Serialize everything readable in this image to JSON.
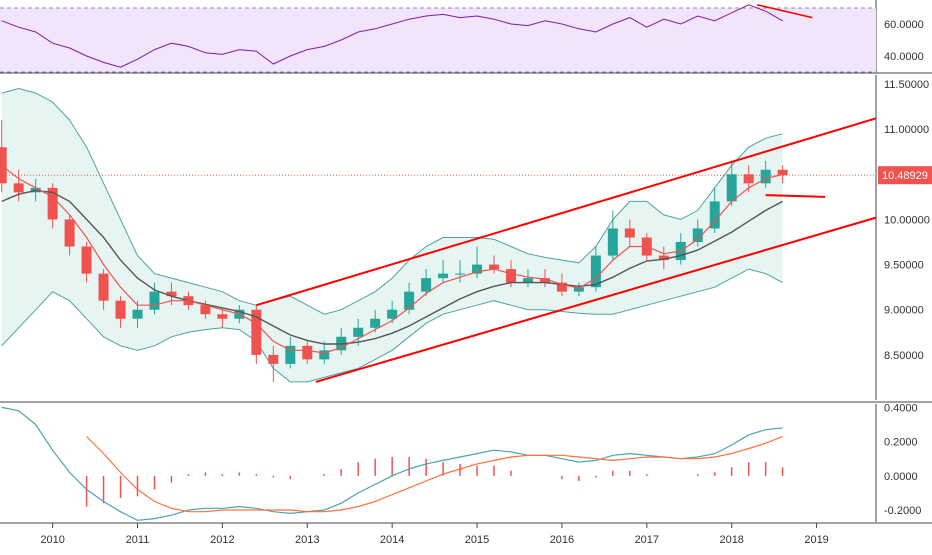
{
  "chart_data": [
    {
      "type": "line",
      "panel": "RSI",
      "x": [
        2009.4,
        2009.6,
        2009.8,
        2010.0,
        2010.2,
        2010.4,
        2010.6,
        2010.8,
        2011.0,
        2011.2,
        2011.4,
        2011.6,
        2011.8,
        2012.0,
        2012.2,
        2012.4,
        2012.6,
        2012.8,
        2013.0,
        2013.2,
        2013.4,
        2013.6,
        2013.8,
        2014.0,
        2014.2,
        2014.4,
        2014.6,
        2014.8,
        2015.0,
        2015.2,
        2015.4,
        2015.6,
        2015.8,
        2016.0,
        2016.2,
        2016.4,
        2016.6,
        2016.8,
        2017.0,
        2017.2,
        2017.4,
        2017.6,
        2017.8,
        2018.0,
        2018.2,
        2018.4,
        2018.6
      ],
      "values": [
        62,
        58,
        55,
        48,
        45,
        40,
        36,
        33,
        38,
        44,
        48,
        46,
        42,
        41,
        44,
        43,
        35,
        40,
        44,
        46,
        50,
        55,
        57,
        60,
        63,
        65,
        66,
        64,
        65,
        63,
        60,
        59,
        62,
        60,
        57,
        55,
        60,
        64,
        58,
        63,
        60,
        65,
        62,
        67,
        72,
        68,
        62
      ],
      "ytick_labels": [
        "40.0000",
        "60.0000"
      ],
      "ylim": [
        30,
        75
      ],
      "levels": [
        30,
        70
      ],
      "trendline": {
        "x": [
          2018.3,
          2018.95
        ],
        "y": [
          72,
          64
        ]
      }
    },
    {
      "type": "candlestick",
      "panel": "price",
      "x": [
        2009.4,
        2009.6,
        2009.8,
        2010.0,
        2010.2,
        2010.4,
        2010.6,
        2010.8,
        2011.0,
        2011.2,
        2011.4,
        2011.6,
        2011.8,
        2012.0,
        2012.2,
        2012.4,
        2012.6,
        2012.8,
        2013.0,
        2013.2,
        2013.4,
        2013.6,
        2013.8,
        2014.0,
        2014.2,
        2014.4,
        2014.6,
        2014.8,
        2015.0,
        2015.2,
        2015.4,
        2015.6,
        2015.8,
        2016.0,
        2016.2,
        2016.4,
        2016.6,
        2016.8,
        2017.0,
        2017.2,
        2017.4,
        2017.6,
        2017.8,
        2018.0,
        2018.2,
        2018.4,
        2018.6
      ],
      "open": [
        10.8,
        10.4,
        10.3,
        10.35,
        10.0,
        9.7,
        9.4,
        9.1,
        8.9,
        9.0,
        9.2,
        9.15,
        9.05,
        8.95,
        8.9,
        9.0,
        8.5,
        8.4,
        8.6,
        8.45,
        8.55,
        8.7,
        8.8,
        8.9,
        9.0,
        9.2,
        9.35,
        9.4,
        9.4,
        9.5,
        9.45,
        9.3,
        9.35,
        9.3,
        9.2,
        9.25,
        9.6,
        9.9,
        9.8,
        9.6,
        9.55,
        9.75,
        9.9,
        10.2,
        10.5,
        10.4,
        10.55
      ],
      "close": [
        10.4,
        10.3,
        10.35,
        10.0,
        9.7,
        9.4,
        9.1,
        8.9,
        9.0,
        9.2,
        9.15,
        9.05,
        8.95,
        8.9,
        9.0,
        8.5,
        8.4,
        8.6,
        8.45,
        8.55,
        8.7,
        8.8,
        8.9,
        9.0,
        9.2,
        9.35,
        9.4,
        9.4,
        9.5,
        9.45,
        9.3,
        9.35,
        9.3,
        9.2,
        9.25,
        9.6,
        9.9,
        9.8,
        9.6,
        9.55,
        9.75,
        9.9,
        10.2,
        10.5,
        10.4,
        10.55,
        10.49
      ],
      "high": [
        11.1,
        10.55,
        10.45,
        10.4,
        10.05,
        9.75,
        9.45,
        9.15,
        9.1,
        9.3,
        9.3,
        9.2,
        9.1,
        9.0,
        9.05,
        9.05,
        8.6,
        8.7,
        8.65,
        8.65,
        8.8,
        8.9,
        9.0,
        9.1,
        9.3,
        9.45,
        9.55,
        9.55,
        9.7,
        9.6,
        9.55,
        9.45,
        9.45,
        9.4,
        9.3,
        9.7,
        10.1,
        10.0,
        9.85,
        9.7,
        9.85,
        10.0,
        10.35,
        10.65,
        10.6,
        10.65,
        10.6
      ],
      "low": [
        10.3,
        10.2,
        10.2,
        9.9,
        9.6,
        9.3,
        9.0,
        8.8,
        8.8,
        8.95,
        9.05,
        9.0,
        8.9,
        8.8,
        8.85,
        8.4,
        8.2,
        8.35,
        8.4,
        8.4,
        8.5,
        8.6,
        8.75,
        8.85,
        8.95,
        9.15,
        9.3,
        9.3,
        9.35,
        9.4,
        9.25,
        9.25,
        9.25,
        9.15,
        9.15,
        9.2,
        9.55,
        9.7,
        9.55,
        9.45,
        9.5,
        9.7,
        9.85,
        10.15,
        10.3,
        10.35,
        10.4
      ],
      "ma_fast": [
        10.6,
        10.45,
        10.35,
        10.25,
        10.05,
        9.8,
        9.5,
        9.25,
        9.05,
        9.05,
        9.1,
        9.1,
        9.05,
        9.0,
        8.95,
        8.85,
        8.65,
        8.55,
        8.55,
        8.52,
        8.58,
        8.68,
        8.78,
        8.88,
        9.02,
        9.18,
        9.3,
        9.36,
        9.42,
        9.45,
        9.4,
        9.36,
        9.34,
        9.28,
        9.24,
        9.35,
        9.55,
        9.7,
        9.7,
        9.62,
        9.65,
        9.78,
        9.98,
        10.2,
        10.35,
        10.45,
        10.5
      ],
      "ma_slow": [
        10.2,
        10.28,
        10.32,
        10.3,
        10.2,
        10.0,
        9.8,
        9.55,
        9.35,
        9.22,
        9.15,
        9.1,
        9.06,
        9.02,
        8.98,
        8.92,
        8.82,
        8.72,
        8.66,
        8.62,
        8.62,
        8.64,
        8.68,
        8.74,
        8.82,
        8.92,
        9.02,
        9.12,
        9.2,
        9.26,
        9.3,
        9.3,
        9.3,
        9.28,
        9.26,
        9.28,
        9.36,
        9.46,
        9.54,
        9.56,
        9.6,
        9.66,
        9.76,
        9.86,
        9.98,
        10.1,
        10.2
      ],
      "bb_upper": [
        11.4,
        11.45,
        11.4,
        11.3,
        11.1,
        10.8,
        10.4,
        10.0,
        9.6,
        9.4,
        9.35,
        9.3,
        9.25,
        9.2,
        9.1,
        9.05,
        9.1,
        9.15,
        9.05,
        8.95,
        9.0,
        9.1,
        9.2,
        9.35,
        9.55,
        9.7,
        9.8,
        9.8,
        9.8,
        9.78,
        9.7,
        9.62,
        9.58,
        9.55,
        9.52,
        9.7,
        10.0,
        10.2,
        10.2,
        10.05,
        10.0,
        10.1,
        10.35,
        10.6,
        10.8,
        10.9,
        10.95
      ],
      "bb_lower": [
        8.6,
        8.8,
        9.0,
        9.2,
        9.1,
        8.9,
        8.7,
        8.6,
        8.55,
        8.6,
        8.7,
        8.75,
        8.78,
        8.8,
        8.78,
        8.65,
        8.35,
        8.2,
        8.2,
        8.25,
        8.3,
        8.35,
        8.45,
        8.55,
        8.7,
        8.85,
        8.95,
        9.0,
        9.05,
        9.1,
        9.05,
        9.0,
        9.0,
        8.98,
        8.96,
        8.95,
        8.95,
        9.0,
        9.05,
        9.1,
        9.15,
        9.2,
        9.25,
        9.35,
        9.45,
        9.4,
        9.3
      ],
      "ytick_labels": [
        "8.50000",
        "9.00000",
        "9.50000",
        "10.00000",
        "10.50000",
        "11.00000",
        "11.50000"
      ],
      "ylim": [
        8.0,
        11.6
      ],
      "last_price_label": "10.48929",
      "last_price": 10.49,
      "channel_upper": {
        "x": [
          2012.4,
          2019.7
        ],
        "y": [
          9.05,
          11.12
        ]
      },
      "channel_lower": {
        "x": [
          2013.1,
          2019.7
        ],
        "y": [
          8.2,
          10.02
        ]
      },
      "resistance_line": {
        "x": [
          2018.4,
          2019.1
        ],
        "y": [
          10.27,
          10.25
        ]
      }
    },
    {
      "type": "line",
      "panel": "MACD",
      "x": [
        2009.4,
        2009.6,
        2009.8,
        2010.0,
        2010.2,
        2010.4,
        2010.6,
        2010.8,
        2011.0,
        2011.2,
        2011.4,
        2011.6,
        2011.8,
        2012.0,
        2012.2,
        2012.4,
        2012.6,
        2012.8,
        2013.0,
        2013.2,
        2013.4,
        2013.6,
        2013.8,
        2014.0,
        2014.2,
        2014.4,
        2014.6,
        2014.8,
        2015.0,
        2015.2,
        2015.4,
        2015.6,
        2015.8,
        2016.0,
        2016.2,
        2016.4,
        2016.6,
        2016.8,
        2017.0,
        2017.2,
        2017.4,
        2017.6,
        2017.8,
        2018.0,
        2018.2,
        2018.4,
        2018.6
      ],
      "macd": [
        0.4,
        0.38,
        0.3,
        0.15,
        0.02,
        -0.08,
        -0.15,
        -0.21,
        -0.26,
        -0.25,
        -0.23,
        -0.2,
        -0.19,
        -0.19,
        -0.18,
        -0.19,
        -0.21,
        -0.22,
        -0.21,
        -0.2,
        -0.16,
        -0.1,
        -0.05,
        0.0,
        0.04,
        0.07,
        0.09,
        0.11,
        0.13,
        0.15,
        0.14,
        0.12,
        0.12,
        0.1,
        0.08,
        0.09,
        0.12,
        0.13,
        0.12,
        0.11,
        0.1,
        0.11,
        0.13,
        0.18,
        0.24,
        0.27,
        0.28
      ],
      "signal": [
        null,
        null,
        null,
        null,
        null,
        0.23,
        0.13,
        0.02,
        -0.08,
        -0.15,
        -0.19,
        -0.21,
        -0.21,
        -0.2,
        -0.2,
        -0.2,
        -0.2,
        -0.2,
        -0.21,
        -0.21,
        -0.2,
        -0.18,
        -0.15,
        -0.11,
        -0.07,
        -0.03,
        0.01,
        0.04,
        0.07,
        0.09,
        0.11,
        0.12,
        0.12,
        0.12,
        0.11,
        0.1,
        0.09,
        0.1,
        0.11,
        0.11,
        0.1,
        0.1,
        0.11,
        0.13,
        0.16,
        0.19,
        0.23
      ],
      "hist": [
        null,
        null,
        null,
        null,
        null,
        -0.18,
        -0.16,
        -0.13,
        -0.12,
        -0.08,
        -0.04,
        0.01,
        0.02,
        0.01,
        0.02,
        0.01,
        -0.01,
        -0.02,
        0.0,
        0.01,
        0.04,
        0.08,
        0.1,
        0.11,
        0.11,
        0.1,
        0.08,
        0.07,
        0.06,
        0.06,
        0.03,
        0.0,
        0.0,
        -0.02,
        -0.03,
        -0.01,
        0.03,
        0.03,
        0.01,
        0.0,
        0.0,
        0.01,
        0.02,
        0.05,
        0.08,
        0.08,
        0.05
      ],
      "ytick_labels": [
        "-0.2000",
        "0.0000",
        "0.2000",
        "0.4000"
      ],
      "ylim": [
        -0.27,
        0.42
      ]
    }
  ],
  "xaxis": {
    "tick_labels": [
      "2010",
      "2011",
      "2012",
      "2013",
      "2014",
      "2015",
      "2016",
      "2017",
      "2018",
      "2019"
    ],
    "xlim": [
      2009.38,
      2019.7
    ]
  },
  "colors": {
    "up": "#26a69a",
    "down": "#ef5350",
    "ma_fast": "#ef5350",
    "ma_slow": "#555555",
    "bollinger": "#4aa3a1",
    "bollinger_fill": "#e6f4f2",
    "rsi_line": "#7b1fa2",
    "rsi_fill": "#f1e4fb",
    "trendline": "#ff0000",
    "macd_line": "#4aa3b5",
    "signal_line": "#ff6f3c",
    "last_price_bg": "#ef5350"
  }
}
